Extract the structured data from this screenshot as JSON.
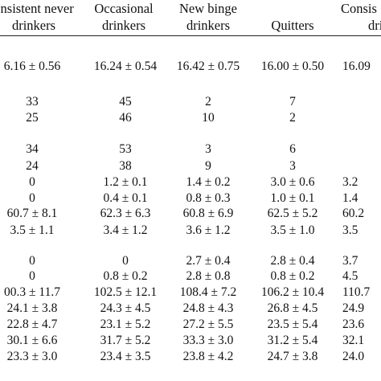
{
  "columns": [
    {
      "header": [
        "onsistent never",
        "drinkers"
      ]
    },
    {
      "header": [
        "Occasional",
        "drinkers"
      ]
    },
    {
      "header": [
        "New binge",
        "drinkers"
      ]
    },
    {
      "header": [
        "",
        "Quitters"
      ]
    },
    {
      "header": [
        "Consis",
        "dri"
      ]
    }
  ],
  "rows": [
    [
      "6.16 ± 0.56",
      "16.24 ± 0.54",
      "16.42 ± 0.75",
      "16.00 ± 0.50",
      "16.09"
    ],
    [
      "33",
      "45",
      "2",
      "7",
      ""
    ],
    [
      "25",
      "46",
      "10",
      "2",
      ""
    ],
    [
      "34",
      "53",
      "3",
      "6",
      ""
    ],
    [
      "24",
      "38",
      "9",
      "3",
      ""
    ],
    [
      "0",
      "1.2 ± 0.1",
      "1.4 ± 0.2",
      "3.0 ± 0.6",
      "3.2"
    ],
    [
      "0",
      "0.4 ± 0.1",
      "0.8 ± 0.3",
      "1.0 ± 0.1",
      "1.4"
    ],
    [
      "60.7 ± 8.1",
      "62.3 ± 6.3",
      "60.8 ± 6.9",
      "62.5 ± 5.2",
      "60.2"
    ],
    [
      "3.5 ± 1.1",
      "3.4 ± 1.2",
      "3.6 ± 1.2",
      "3.5 ± 1.0",
      "3.5"
    ],
    [
      "0",
      "0",
      "2.7 ± 0.4",
      "2.8 ± 0.4",
      "3.7"
    ],
    [
      "0",
      "0.8 ± 0.2",
      "2.8 ± 0.8",
      "0.8 ± 0.2",
      "4.5"
    ],
    [
      "00.3 ± 11.7",
      "102.5 ± 12.1",
      "108.4 ± 7.2",
      "106.2 ± 10.4",
      "110.7"
    ],
    [
      "24.1 ± 3.8",
      "24.3 ± 4.5",
      "24.8 ± 4.3",
      "26.8 ± 4.5",
      "24.9"
    ],
    [
      "22.8 ± 4.7",
      "23.1 ± 5.2",
      "27.2 ± 5.5",
      "23.5 ± 5.4",
      "23.6"
    ],
    [
      "30.1 ± 6.6",
      "31.7 ± 5.2",
      "33.3 ± 3.0",
      "31.2 ± 5.4",
      "32.1"
    ],
    [
      "23.3 ± 3.0",
      "23.4 ± 3.5",
      "23.8 ± 4.2",
      "24.7 ± 3.8",
      "24.0"
    ]
  ]
}
